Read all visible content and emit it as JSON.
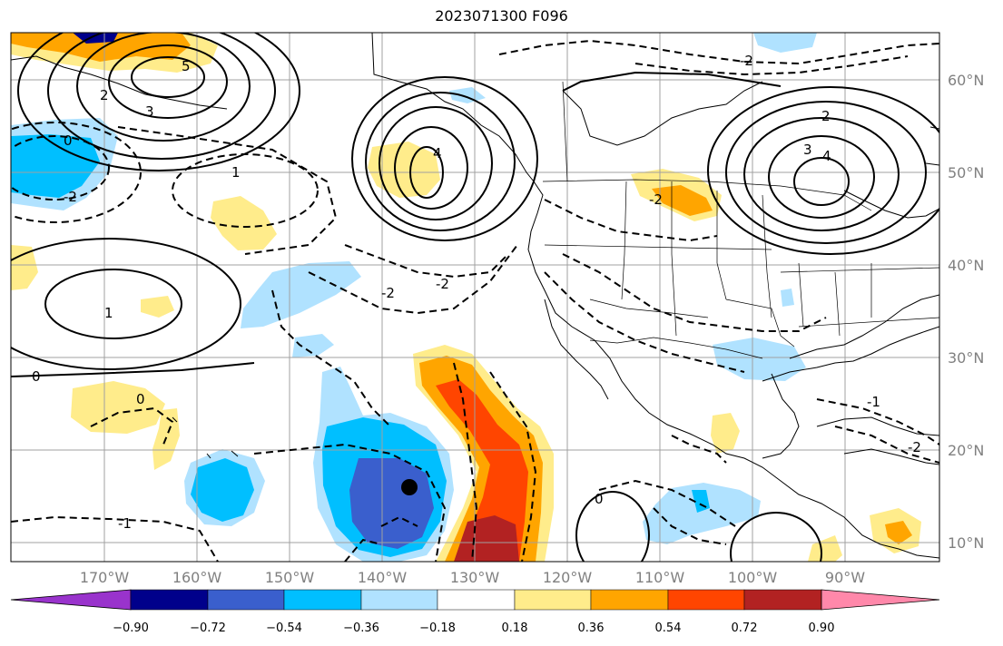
{
  "title": "2023071300 F096",
  "map": {
    "lat_labels": [
      "60°N",
      "50°N",
      "40°N",
      "30°N",
      "20°N",
      "10°N"
    ],
    "lon_labels": [
      "170°W",
      "160°W",
      "150°W",
      "140°W",
      "130°W",
      "120°W",
      "110°W",
      "100°W",
      "90°W"
    ],
    "contour_labels": [
      "5",
      "4",
      "3",
      "2",
      "1",
      "0",
      "-1",
      "-2"
    ]
  },
  "colorbar": {
    "colors": [
      "#9933cc",
      "#00008b",
      "#3a5fcd",
      "#00bfff",
      "#b0e2ff",
      "#ffffff",
      "#ffec8b",
      "#ffa500",
      "#ff4500",
      "#b22222",
      "#ff88aa"
    ],
    "tick_labels": [
      "−0.90",
      "−0.72",
      "−0.54",
      "−0.36",
      "−0.18",
      "0.18",
      "0.36",
      "0.54",
      "0.72",
      "0.90"
    ]
  }
}
